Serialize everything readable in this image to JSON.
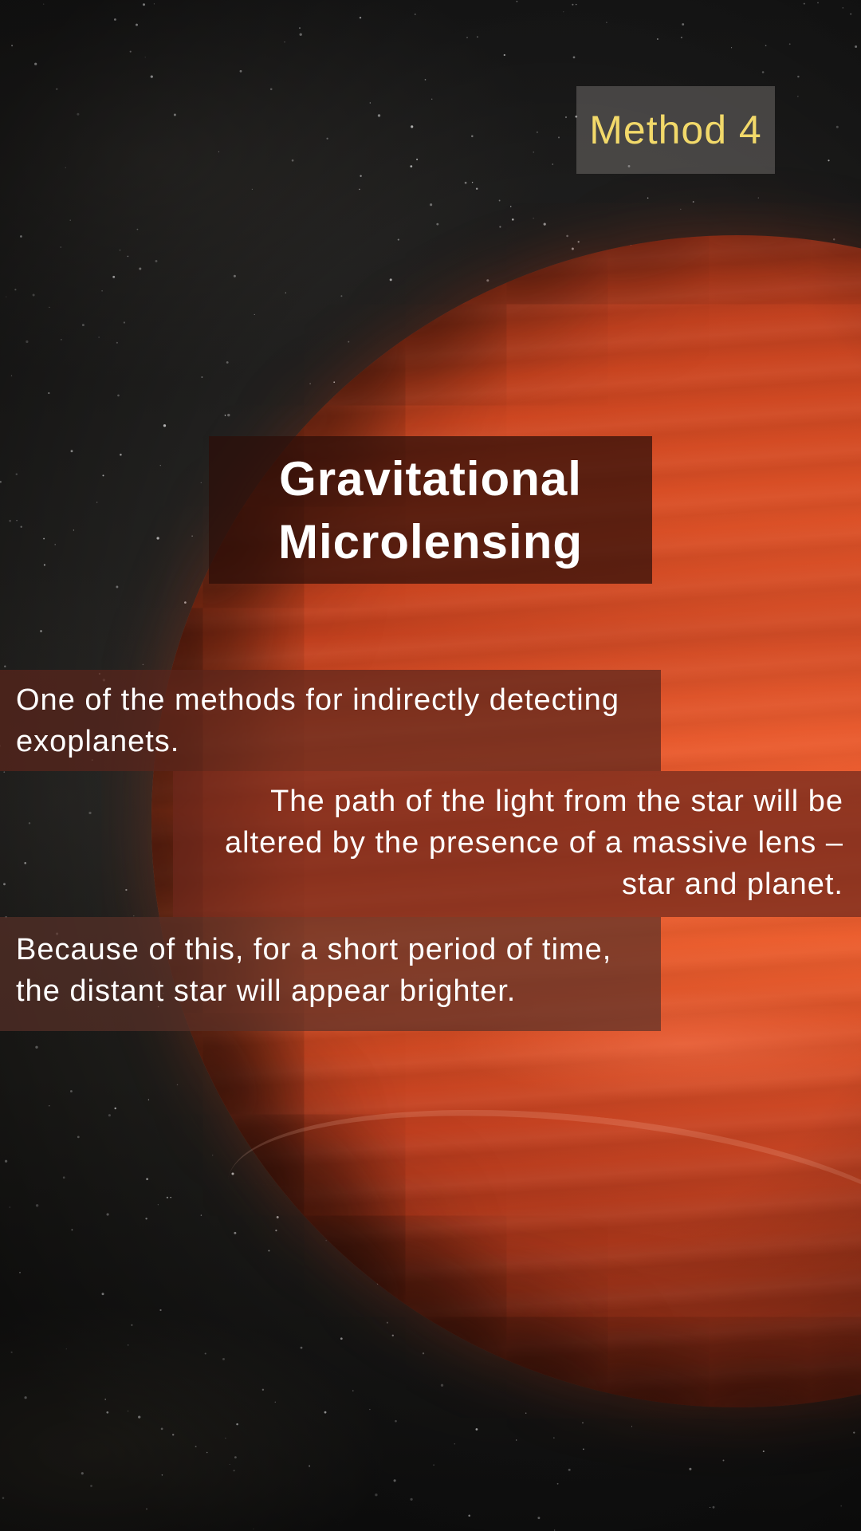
{
  "slide": {
    "method_label": "Method 4",
    "title": "Gravitational\nMicrolensing",
    "paragraphs": [
      "One of the methods for indirectly detecting\nexoplanets.",
      "The path of the light from the star will be\naltered by the presence of a massive lens –\nstar and planet.",
      "Because of this, for a short period of time,\nthe distant star will appear brighter."
    ]
  },
  "colors": {
    "method_label_text": "#f2d96a",
    "body_text": "#ffffff",
    "planet": "#d44a22",
    "space": "#1c1b19"
  }
}
